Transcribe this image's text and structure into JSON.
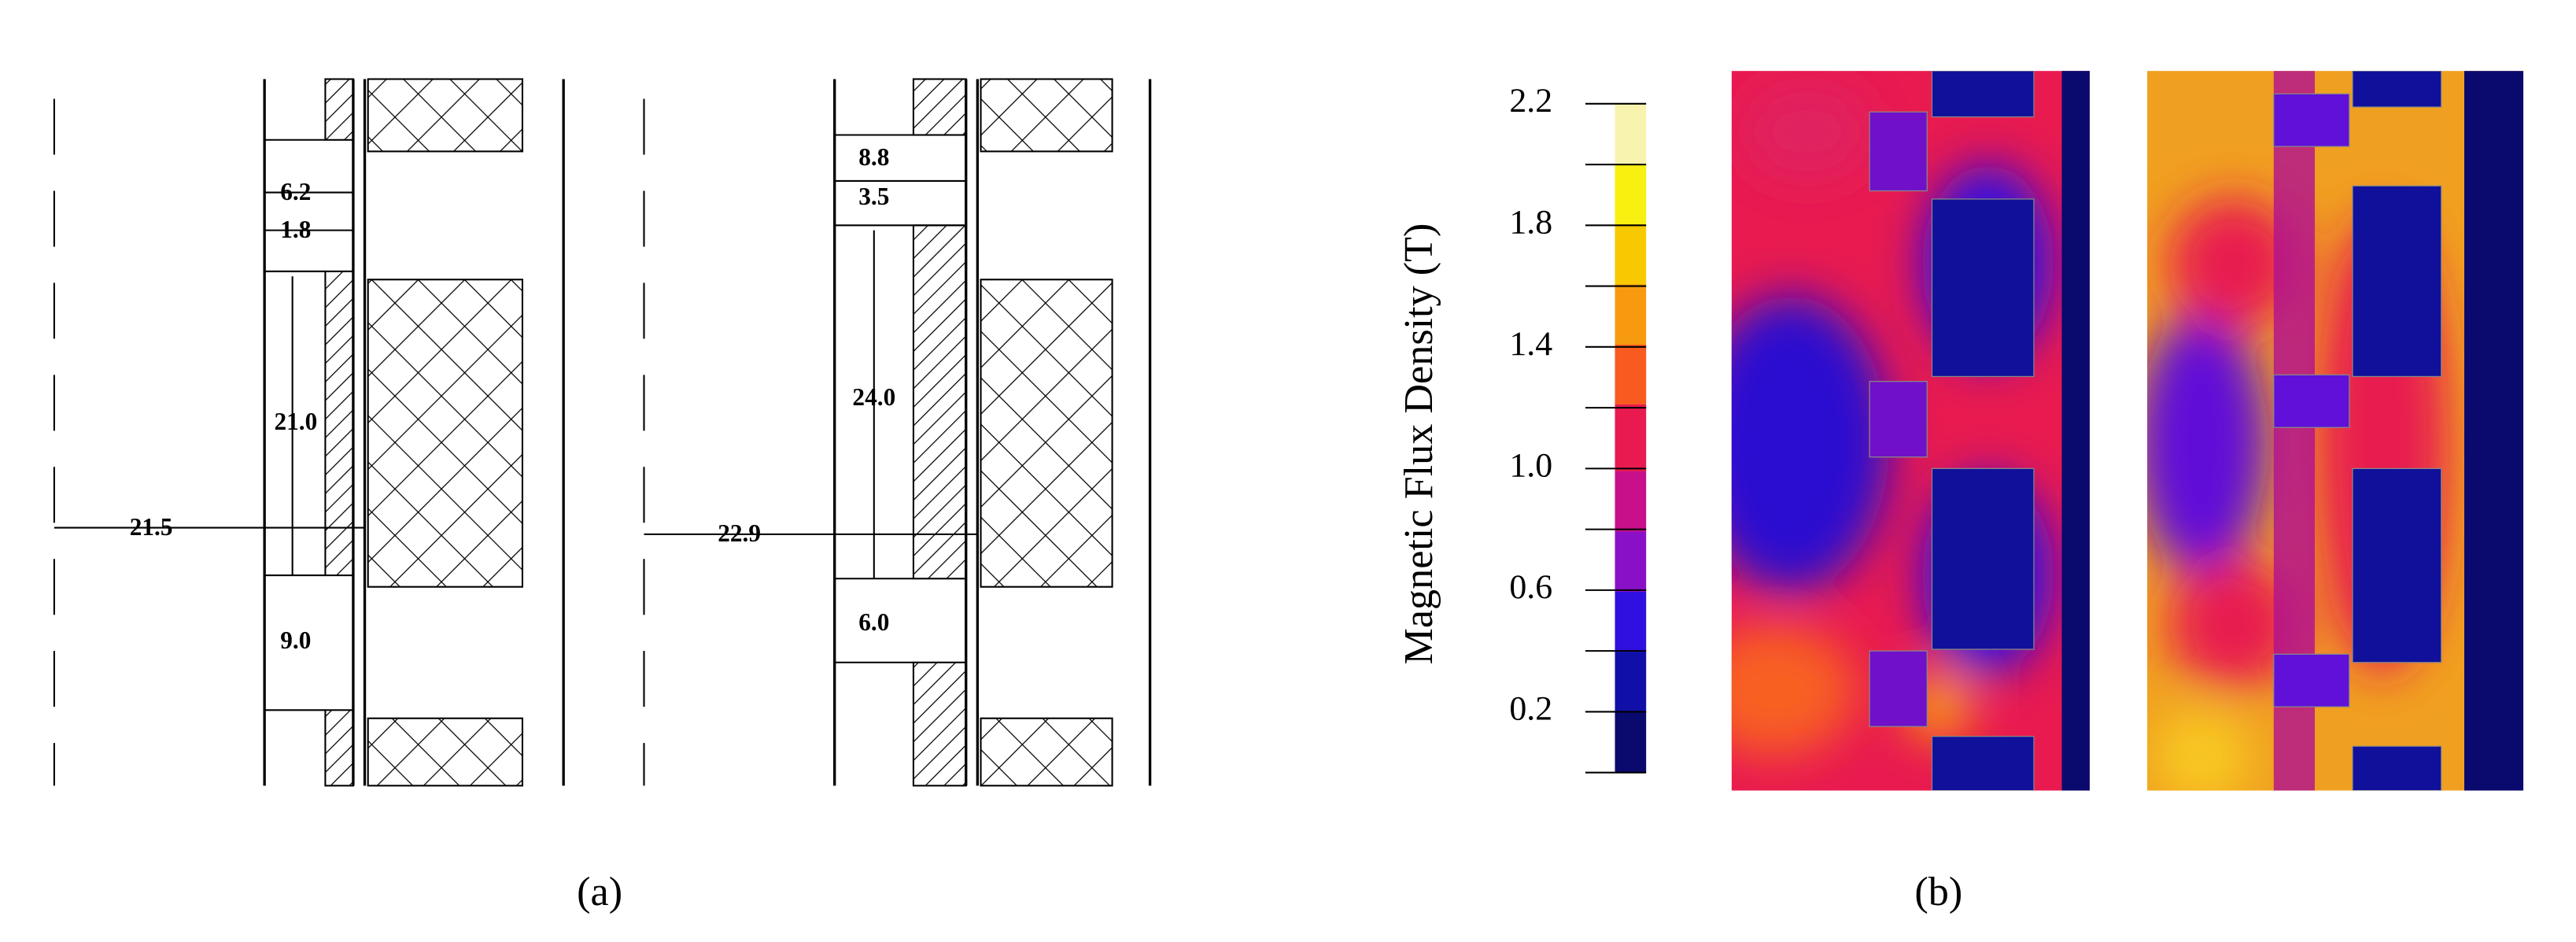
{
  "figure": {
    "panel_a": {
      "left": {
        "dims": [
          "6.2",
          "1.8",
          "21.0",
          "21.5",
          "9.0"
        ]
      },
      "right": {
        "dims": [
          "8.8",
          "3.5",
          "24.0",
          "22.9",
          "6.0"
        ]
      }
    },
    "colorbar": {
      "label": "Magnetic Flux Density (T)",
      "lim": [
        0,
        2.2
      ],
      "ticks": [
        0.2,
        0.6,
        {
          "value": 1,
          "label": "1.0"
        },
        1.4,
        1.8,
        2.2
      ]
    },
    "captions": [
      "(a)",
      "(b)"
    ]
  }
}
